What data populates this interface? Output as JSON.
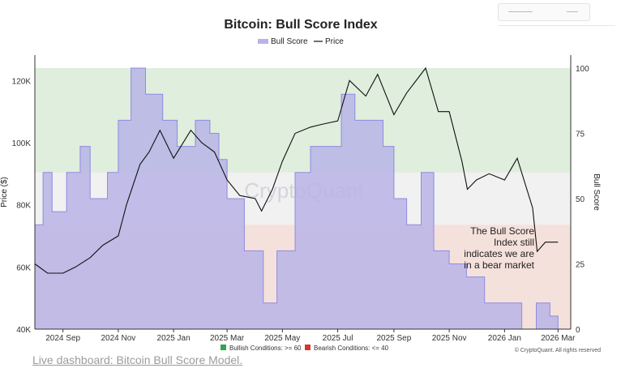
{
  "chart_data": {
    "type": "line",
    "title": "Bitcoin: Bull Score Index",
    "legend": [
      "Bull Score",
      "Price"
    ],
    "legend_placement": "top-center",
    "x_ticks": [
      "2024 Sep",
      "2024 Nov",
      "2025 Jan",
      "2025 Mar",
      "2025 May",
      "2025 Jul",
      "2025 Sep",
      "2025 Nov",
      "2026 Jan",
      "2026 Mar"
    ],
    "y_left": {
      "label": "Price ($)",
      "ticks": [
        "40K",
        "60K",
        "80K",
        "100K",
        "120K"
      ],
      "range": [
        40000,
        126000
      ]
    },
    "y_right": {
      "label": "Bull Score",
      "ticks": [
        "0",
        "25",
        "50",
        "75",
        "100"
      ],
      "range": [
        0,
        100
      ]
    },
    "zones": {
      "bullish_min": 60,
      "bearish_max": 40
    },
    "colors": {
      "bull_score_fill": "#b8b4e6",
      "bull_score_line": "#8f8be0",
      "price": "#111111",
      "bullish_zone": "#dfeedd",
      "neutral_zone": "#f1f1f1",
      "bearish_zone": "#f5e1dc"
    },
    "series": [
      {
        "name": "Price",
        "x": [
          "2024-08-01",
          "2024-08-15",
          "2024-09-01",
          "2024-09-15",
          "2024-10-01",
          "2024-10-15",
          "2024-11-01",
          "2024-11-10",
          "2024-11-25",
          "2024-12-05",
          "2024-12-17",
          "2025-01-01",
          "2025-01-20",
          "2025-02-01",
          "2025-02-15",
          "2025-03-01",
          "2025-03-15",
          "2025-04-01",
          "2025-04-08",
          "2025-04-20",
          "2025-05-01",
          "2025-05-15",
          "2025-06-01",
          "2025-06-15",
          "2025-07-01",
          "2025-07-14",
          "2025-08-01",
          "2025-08-14",
          "2025-09-01",
          "2025-09-15",
          "2025-10-06",
          "2025-10-20",
          "2025-11-01",
          "2025-11-15",
          "2025-11-21",
          "2025-12-01",
          "2025-12-15",
          "2026-01-01",
          "2026-01-15",
          "2026-02-01",
          "2026-02-06",
          "2026-02-15",
          "2026-03-01"
        ],
        "values": [
          61000,
          58000,
          58000,
          60000,
          63000,
          67000,
          70000,
          80000,
          93000,
          97000,
          104000,
          95000,
          104000,
          100000,
          97000,
          88000,
          83000,
          82000,
          78000,
          85000,
          94000,
          103000,
          105000,
          106000,
          107000,
          120000,
          115000,
          122000,
          109000,
          116000,
          124000,
          110000,
          110000,
          94000,
          85000,
          88000,
          90000,
          88000,
          95000,
          79000,
          65000,
          68000,
          68000
        ]
      },
      {
        "name": "Bull Score",
        "x": [
          "2024-08-01",
          "2024-08-10",
          "2024-08-20",
          "2024-09-05",
          "2024-09-20",
          "2024-10-01",
          "2024-10-20",
          "2024-11-01",
          "2024-11-15",
          "2024-12-01",
          "2024-12-20",
          "2025-01-05",
          "2025-01-25",
          "2025-02-10",
          "2025-02-20",
          "2025-03-01",
          "2025-03-20",
          "2025-04-10",
          "2025-04-25",
          "2025-05-15",
          "2025-06-01",
          "2025-06-20",
          "2025-07-05",
          "2025-07-20",
          "2025-08-01",
          "2025-08-20",
          "2025-09-01",
          "2025-09-15",
          "2025-10-01",
          "2025-10-15",
          "2025-11-01",
          "2025-11-20",
          "2025-12-10",
          "2026-01-01",
          "2026-01-20",
          "2026-02-05",
          "2026-02-20",
          "2026-03-01"
        ],
        "values": [
          40,
          60,
          45,
          60,
          70,
          50,
          60,
          80,
          100,
          90,
          80,
          70,
          80,
          75,
          65,
          50,
          30,
          10,
          30,
          60,
          70,
          70,
          90,
          80,
          80,
          70,
          50,
          40,
          60,
          30,
          25,
          20,
          10,
          10,
          0,
          10,
          5,
          0
        ]
      }
    ],
    "annotation": [
      "The Bull Score",
      "Index still",
      "indicates we are",
      "in a bear market"
    ],
    "watermark": "CryptoQuant",
    "conditions": {
      "bullish": "Bullish Conditions: >= 60",
      "bearish": "Bearish Conditions: <= 40"
    },
    "copyright": "© CryptoQuant. All rights reserved"
  },
  "link_text": "Live dashboard: Bitcoin Bull Score Model."
}
